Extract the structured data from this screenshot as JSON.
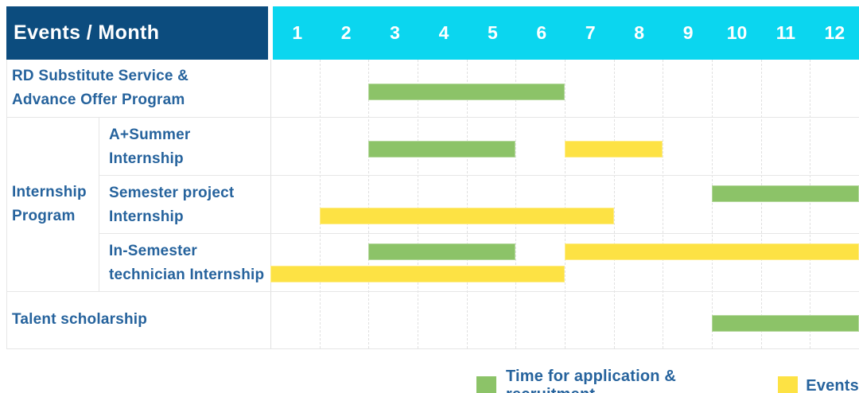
{
  "header": {
    "title": "Events / Month",
    "month_labels": [
      "1",
      "2",
      "3",
      "4",
      "5",
      "6",
      "7",
      "8",
      "9",
      "10",
      "11",
      "12"
    ]
  },
  "colors": {
    "header_bg": "#0C4C7E",
    "months_bg": "#0BD6EF",
    "header_text": "#FFFFFF",
    "label_text": "#26639D",
    "green": "#8CC368",
    "yellow": "#FDE244",
    "grid_line": "#E0E0E0",
    "cell_border": "#E6E6E6"
  },
  "legend": {
    "items": [
      {
        "label": "Time for application & recruitment",
        "series": "application_recruitment",
        "color": "#8CC368"
      },
      {
        "label": "Events",
        "series": "events",
        "color": "#FDE244"
      }
    ]
  },
  "chart_data": {
    "type": "gantt",
    "x_axis": {
      "label": "Month",
      "ticks": [
        1,
        2,
        3,
        4,
        5,
        6,
        7,
        8,
        9,
        10,
        11,
        12
      ]
    },
    "series_names": {
      "application_recruitment": "Time for application & recruitment",
      "events": "Events"
    },
    "series_colors": {
      "application_recruitment": "#8CC368",
      "events": "#FDE244"
    },
    "group_label": "Internship Program",
    "group_label_lines": [
      "Internship",
      "Program"
    ],
    "rows": [
      {
        "group": null,
        "label": "RD Substitute Service & Advance Offer Program",
        "label_lines": [
          "RD Substitute Service &",
          "Advance Offer Program"
        ],
        "bars": [
          {
            "series": "application_recruitment",
            "start_month": 3,
            "end_month": 6,
            "lane": "mid"
          }
        ]
      },
      {
        "group": "Internship Program",
        "label": "A+Summer Internship",
        "label_lines": [
          "A+Summer",
          "Internship"
        ],
        "bars": [
          {
            "series": "application_recruitment",
            "start_month": 3,
            "end_month": 5,
            "lane": "mid"
          },
          {
            "series": "events",
            "start_month": 7,
            "end_month": 8,
            "lane": "mid"
          }
        ]
      },
      {
        "group": "Internship Program",
        "label": "Semester project Internship",
        "label_lines": [
          "Semester project",
          "Internship"
        ],
        "bars": [
          {
            "series": "application_recruitment",
            "start_month": 10,
            "end_month": 12,
            "lane": "top"
          },
          {
            "series": "events",
            "start_month": 2,
            "end_month": 7,
            "lane": "bottom"
          }
        ]
      },
      {
        "group": "Internship Program",
        "label": "In-Semester technician Internship",
        "label_lines": [
          "In-Semester",
          "technician Internship"
        ],
        "bars": [
          {
            "series": "application_recruitment",
            "start_month": 3,
            "end_month": 5,
            "lane": "top"
          },
          {
            "series": "events",
            "start_month": 7,
            "end_month": 12,
            "lane": "top"
          },
          {
            "series": "events",
            "start_month": 1,
            "end_month": 6,
            "lane": "bottom"
          }
        ]
      },
      {
        "group": null,
        "label": "Talent scholarship",
        "label_lines": [
          "Talent scholarship"
        ],
        "bars": [
          {
            "series": "application_recruitment",
            "start_month": 10,
            "end_month": 12,
            "lane": "mid"
          }
        ]
      }
    ]
  }
}
